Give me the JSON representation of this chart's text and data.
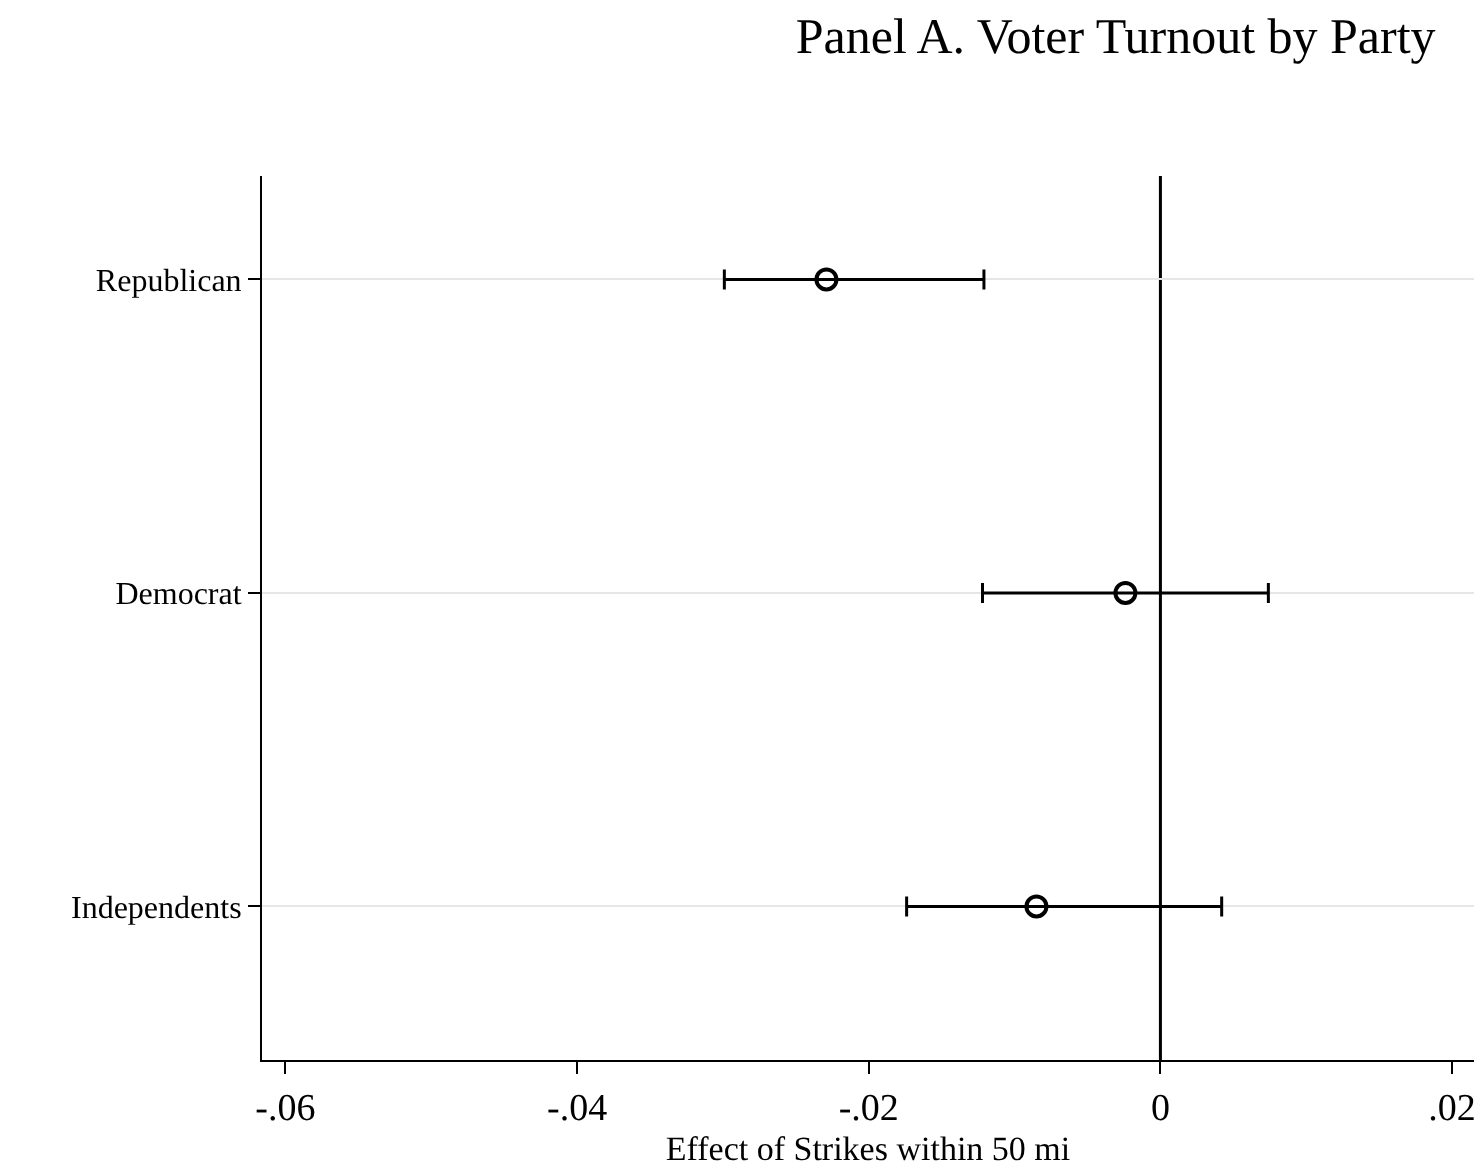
{
  "chart_data": {
    "type": "scatter",
    "orientation": "horizontal",
    "title": "Panel A. Voter Turnout by Party",
    "xlabel": "Effect of Strikes within 50 mi",
    "categories": [
      "Republican",
      "Democrat",
      "Independents"
    ],
    "series": [
      {
        "color": "#000000",
        "values": [
          -0.0229,
          -0.0024,
          -0.0085
        ],
        "errors": [
          [
            -0.0299,
            -0.0121
          ],
          [
            -0.0122,
            0.0074
          ],
          [
            -0.0174,
            0.0042
          ]
        ]
      }
    ],
    "xlim": [
      -0.0616,
      0.0215
    ],
    "xticks": [
      {
        "value": -0.06,
        "label": "-.06"
      },
      {
        "value": -0.04,
        "label": "-.04"
      },
      {
        "value": -0.02,
        "label": "-.02"
      },
      0,
      {
        "value": 0.02,
        "label": ".02"
      }
    ],
    "ref_lines": [
      {
        "axis": "x",
        "value": 0,
        "color": "#000000"
      }
    ],
    "grid": "y",
    "marker": "circle"
  }
}
